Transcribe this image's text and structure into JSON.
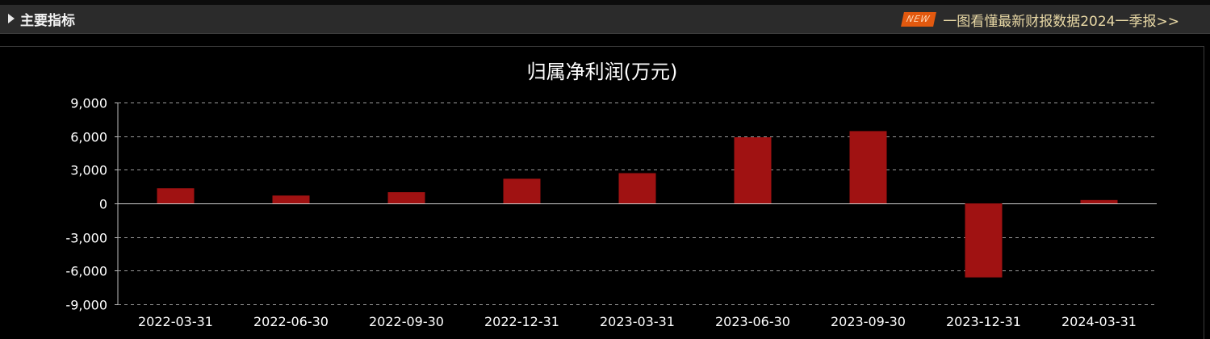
{
  "header": {
    "section_title": "主要指标",
    "section_icon": "triangle-right-icon",
    "promo_badge": "NEW",
    "promo_text": "一图看懂最新财报数据2024一季报>>"
  },
  "colors": {
    "bar": "#a01212",
    "grid": "#9a9a9a",
    "promo_text": "#e9d9a6",
    "badge": "#e2590f"
  },
  "chart_data": {
    "type": "bar",
    "title": "归属净利润(万元)",
    "xlabel": "",
    "ylabel": "",
    "categories": [
      "2022-03-31",
      "2022-06-30",
      "2022-09-30",
      "2022-12-31",
      "2023-03-31",
      "2023-06-30",
      "2023-09-30",
      "2023-12-31",
      "2024-03-31"
    ],
    "values": [
      1350,
      700,
      1000,
      2200,
      2700,
      5900,
      6450,
      -6600,
      300
    ],
    "ylim": [
      -9000,
      9000
    ],
    "yticks": [
      9000,
      6000,
      3000,
      0,
      -3000,
      -6000,
      -9000
    ],
    "ytick_labels": [
      "9,000",
      "6,000",
      "3,000",
      "0",
      "-3,000",
      "-6,000",
      "-9,000"
    ],
    "grid": true,
    "legend": "none"
  }
}
